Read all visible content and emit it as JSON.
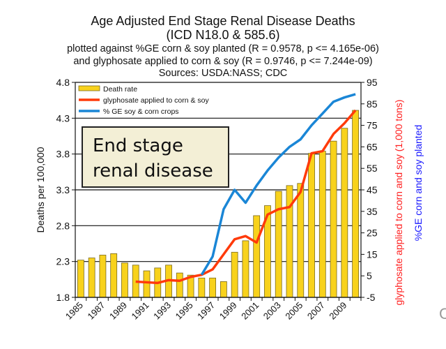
{
  "chart_data": {
    "type": "bar+line",
    "title": [
      "Age Adjusted End Stage Renal Disease Deaths",
      "(ICD N18.0 & 585.6)"
    ],
    "subtitle": [
      "plotted against %GE corn & soy planted (R = 0.9578, p <= 4.165e-06)",
      "and glyphosate applied to corn & soy (R = 0.9746, p <= 7.244e-09)",
      "Sources: USDA:NASS; CDC"
    ],
    "ylabel": "Deaths per 100,000",
    "y2label_red": "glyphosate applied to corn and soy (1,000 tons)",
    "y2label_blue": "%GE corn and soy planted",
    "ylim": [
      1.8,
      4.8
    ],
    "yticks": [
      "1.8",
      "2.3",
      "2.8",
      "3.3",
      "3.8",
      "4.3",
      "4.8"
    ],
    "y2lim": [
      -5,
      95
    ],
    "y2ticks": [
      "-5",
      "5",
      "15",
      "25",
      "35",
      "45",
      "55",
      "65",
      "75",
      "85",
      "95"
    ],
    "x": [
      1985,
      1986,
      1987,
      1988,
      1989,
      1990,
      1991,
      1992,
      1993,
      1994,
      1995,
      1996,
      1997,
      1998,
      1999,
      2000,
      2001,
      2002,
      2003,
      2004,
      2005,
      2006,
      2007,
      2008,
      2009,
      2010
    ],
    "xticklabels": [
      "1985",
      "1987",
      "1989",
      "1991",
      "1993",
      "1995",
      "1997",
      "1999",
      "2001",
      "2003",
      "2005",
      "2007",
      "2009"
    ],
    "legend_position": "top-left",
    "grid": "horizontal",
    "series": [
      {
        "name": "Death rate",
        "type": "bar",
        "axis": "left",
        "color": "#f8d21c",
        "values": [
          2.32,
          2.35,
          2.39,
          2.41,
          2.28,
          2.25,
          2.17,
          2.21,
          2.25,
          2.14,
          2.11,
          2.07,
          2.07,
          2.02,
          2.43,
          2.59,
          2.94,
          3.08,
          3.28,
          3.36,
          3.39,
          3.81,
          3.84,
          3.98,
          4.16,
          4.41
        ]
      },
      {
        "name": "glyphosate applied to corn & soy",
        "type": "line",
        "axis": "right",
        "color": "#ff3a0a",
        "values": [
          null,
          null,
          null,
          null,
          null,
          2.3,
          2,
          1.7,
          3,
          2.7,
          4.5,
          5.5,
          8,
          15,
          22,
          23.5,
          20.5,
          33.5,
          36,
          37,
          44,
          62,
          63,
          71,
          76,
          82
        ]
      },
      {
        "name": "% GE soy & corn crops",
        "type": "line",
        "axis": "right",
        "color": "#1a86d6",
        "values": [
          null,
          null,
          null,
          null,
          null,
          null,
          null,
          null,
          null,
          null,
          null,
          5.5,
          14,
          36,
          45,
          39,
          47,
          54,
          60,
          65,
          68.5,
          75,
          80.5,
          86,
          88,
          89.5
        ]
      }
    ],
    "annotation": [
      "End stage",
      "renal disease"
    ]
  },
  "edge_glyph": "C"
}
